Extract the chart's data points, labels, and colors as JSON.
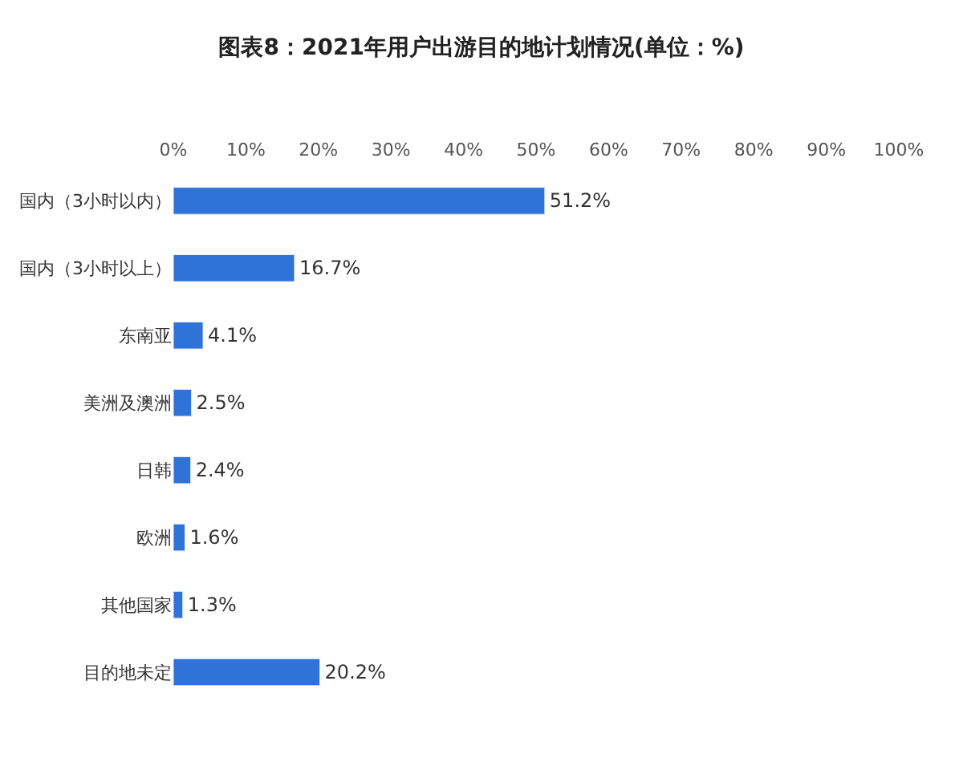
{
  "chart_data": {
    "type": "bar",
    "orientation": "horizontal",
    "title": "图表8：2021年用户出游目的地计划情况(单位：%)",
    "categories": [
      "国内（3小时以内）",
      "国内（3小时以上）",
      "东南亚",
      "美洲及澳洲",
      "日韩",
      "欧洲",
      "其他国家",
      "目的地未定"
    ],
    "values": [
      51.2,
      16.7,
      4.1,
      2.5,
      2.4,
      1.6,
      1.3,
      20.2
    ],
    "value_labels": [
      "51.2%",
      "16.7%",
      "4.1%",
      "2.5%",
      "2.4%",
      "1.6%",
      "1.3%",
      "20.2%"
    ],
    "color": "#2f72d8",
    "xlim": [
      0,
      100
    ],
    "xticks": [
      {
        "value": 0,
        "label": "0%"
      },
      {
        "value": 10,
        "label": "10%"
      },
      {
        "value": 20,
        "label": "20%"
      },
      {
        "value": 30,
        "label": "30%"
      },
      {
        "value": 40,
        "label": "40%"
      },
      {
        "value": 50,
        "label": "50%"
      },
      {
        "value": 60,
        "label": "60%"
      },
      {
        "value": 70,
        "label": "70%"
      },
      {
        "value": 80,
        "label": "80%"
      },
      {
        "value": 90,
        "label": "90%"
      },
      {
        "value": 100,
        "label": "100%"
      }
    ]
  }
}
